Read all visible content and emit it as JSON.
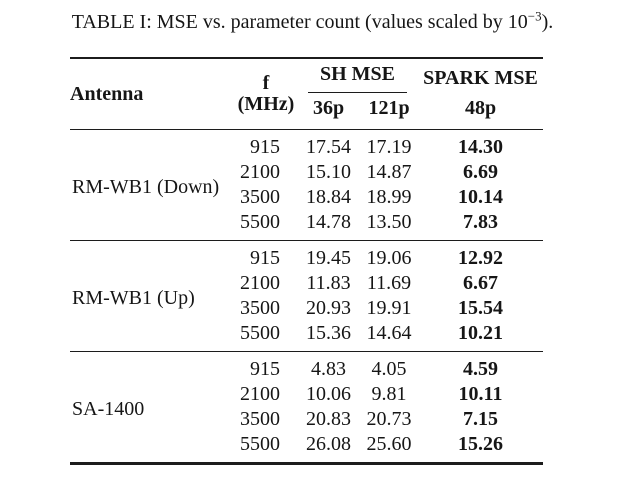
{
  "colors": {
    "background": "#ffffff",
    "text": "#161616",
    "rule": "#1c1c1c"
  },
  "caption": {
    "prefix": "TABLE I: MSE vs. parameter count (values scaled by 10",
    "superscript": "−3",
    "suffix": ")."
  },
  "table": {
    "headers": {
      "antenna": "Antenna",
      "frequency": "f (MHz)",
      "sh_group": "SH MSE",
      "spark_group": "SPARK MSE",
      "sh_sub_36p": "36p",
      "sh_sub_121p": "121p",
      "spark_sub_48p": "48p"
    },
    "groups": [
      {
        "antenna": "RM-WB1 (Down)",
        "rows": [
          {
            "f": "915",
            "sh_36p": "17.54",
            "sh_121p": "17.19",
            "spark_48p": "14.30"
          },
          {
            "f": "2100",
            "sh_36p": "15.10",
            "sh_121p": "14.87",
            "spark_48p": "6.69"
          },
          {
            "f": "3500",
            "sh_36p": "18.84",
            "sh_121p": "18.99",
            "spark_48p": "10.14"
          },
          {
            "f": "5500",
            "sh_36p": "14.78",
            "sh_121p": "13.50",
            "spark_48p": "7.83"
          }
        ]
      },
      {
        "antenna": "RM-WB1 (Up)",
        "rows": [
          {
            "f": "915",
            "sh_36p": "19.45",
            "sh_121p": "19.06",
            "spark_48p": "12.92"
          },
          {
            "f": "2100",
            "sh_36p": "11.83",
            "sh_121p": "11.69",
            "spark_48p": "6.67"
          },
          {
            "f": "3500",
            "sh_36p": "20.93",
            "sh_121p": "19.91",
            "spark_48p": "15.54"
          },
          {
            "f": "5500",
            "sh_36p": "15.36",
            "sh_121p": "14.64",
            "spark_48p": "10.21"
          }
        ]
      },
      {
        "antenna": "SA-1400",
        "rows": [
          {
            "f": "915",
            "sh_36p": "4.83",
            "sh_121p": "4.05",
            "spark_48p": "4.59"
          },
          {
            "f": "2100",
            "sh_36p": "10.06",
            "sh_121p": "9.81",
            "spark_48p": "10.11"
          },
          {
            "f": "3500",
            "sh_36p": "20.83",
            "sh_121p": "20.73",
            "spark_48p": "7.15"
          },
          {
            "f": "5500",
            "sh_36p": "26.08",
            "sh_121p": "25.60",
            "spark_48p": "15.26"
          }
        ]
      }
    ]
  }
}
